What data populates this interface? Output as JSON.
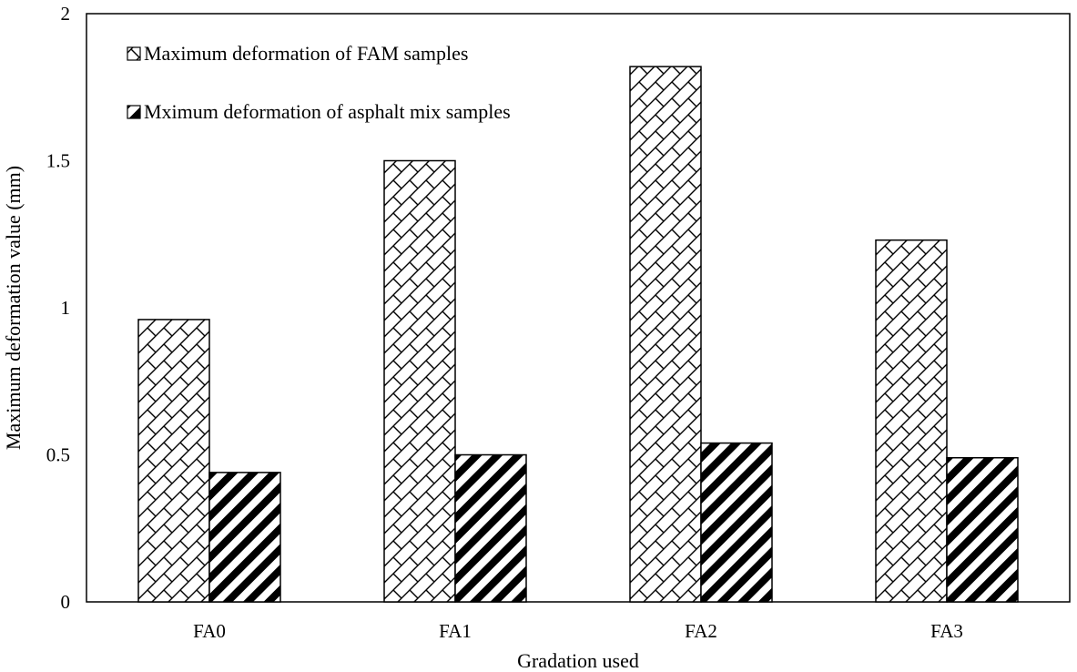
{
  "chart_data": {
    "type": "bar",
    "title": "",
    "xlabel": "Gradation used",
    "ylabel": "Maximum deformation value (mm)",
    "categories": [
      "FA0",
      "FA1",
      "FA2",
      "FA3"
    ],
    "ylim": [
      0,
      2
    ],
    "yticks": [
      "0",
      "0.5",
      "1",
      "1.5",
      "2"
    ],
    "grid": false,
    "legend_position": "top-left",
    "series": [
      {
        "name": "Maximum deformation of FAM samples",
        "values": [
          0.96,
          1.5,
          1.82,
          1.23
        ],
        "pattern": "crosshatch-brick",
        "color": "#000000"
      },
      {
        "name": "Mximum deformation of asphalt mix samples",
        "values": [
          0.44,
          0.5,
          0.54,
          0.49
        ],
        "pattern": "diagonal-stripes",
        "color": "#000000"
      }
    ]
  }
}
